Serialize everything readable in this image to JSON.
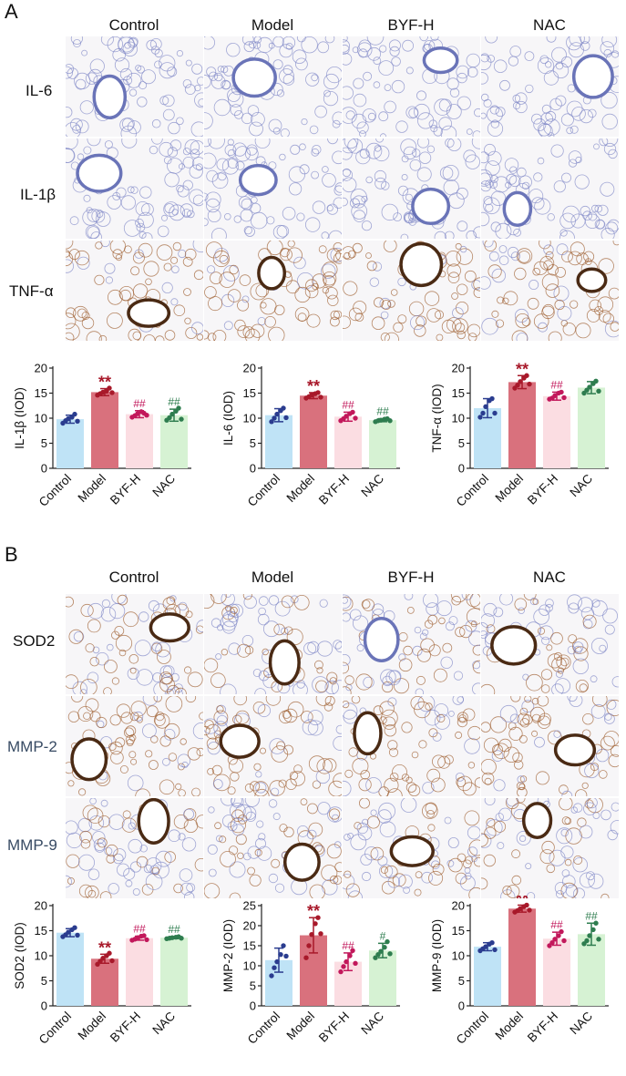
{
  "panel_a": {
    "letter": "A",
    "columns": [
      "Control",
      "Model",
      "BYF-H",
      "NAC"
    ],
    "rows": [
      "IL-6",
      "IL-1β",
      "TNF-α"
    ]
  },
  "panel_b": {
    "letter": "B",
    "columns": [
      "Control",
      "Model",
      "BYF-H",
      "NAC"
    ],
    "rows": [
      "SOD2",
      "MMP-2",
      "MMP-9"
    ]
  },
  "colors": {
    "Control": {
      "fill": "#bfe3f6",
      "dot": "#2a3c8f"
    },
    "Model": {
      "fill": "#d9717d",
      "dot": "#a8192a"
    },
    "BYF-H": {
      "fill": "#fbdde2",
      "dot": "#c2185b"
    },
    "NAC": {
      "fill": "#d6f2d3",
      "dot": "#2e7d4f"
    },
    "tissue_blue": "#7d86c6",
    "tissue_brown": "#9b5a2a"
  },
  "stain_types": {
    "IL-6": "blue",
    "IL-1β": "blue",
    "TNF-α": "brown",
    "SOD2": "mixed",
    "MMP-2": "brown",
    "MMP-9": "mixed"
  },
  "chart_data": [
    {
      "type": "bar",
      "ylabel": "IL-1β (IOD)",
      "ylim": [
        0,
        20
      ],
      "yticks": [
        0,
        5,
        10,
        15,
        20
      ],
      "categories": [
        "Control",
        "Model",
        "BYF-H",
        "NAC"
      ],
      "values": [
        9.8,
        15.2,
        10.8,
        10.6
      ],
      "errors": [
        0.8,
        0.7,
        0.7,
        1.2
      ],
      "points": [
        [
          9.0,
          9.5,
          9.9,
          10.2,
          10.8,
          9.4
        ],
        [
          14.6,
          14.9,
          15.2,
          15.4,
          16.0,
          15.1
        ],
        [
          10.2,
          10.5,
          10.9,
          11.3,
          11.0,
          10.6
        ],
        [
          9.6,
          10.1,
          10.8,
          11.4,
          12.0,
          9.8
        ]
      ],
      "annotations": [
        "",
        "**",
        "##",
        "##"
      ]
    },
    {
      "type": "bar",
      "ylabel": "IL-6 (IOD)",
      "ylim": [
        0,
        20
      ],
      "yticks": [
        0,
        5,
        10,
        15,
        20
      ],
      "categories": [
        "Control",
        "Model",
        "BYF-H",
        "NAC"
      ],
      "values": [
        10.6,
        14.5,
        10.3,
        9.6
      ],
      "errors": [
        1.3,
        0.6,
        0.9,
        0.3
      ],
      "points": [
        [
          9.3,
          10.0,
          10.8,
          11.5,
          12.0,
          10.1
        ],
        [
          14.0,
          14.3,
          14.6,
          14.9,
          15.1,
          14.2
        ],
        [
          9.5,
          9.9,
          10.4,
          10.9,
          11.2,
          10.0
        ],
        [
          9.3,
          9.5,
          9.6,
          9.8,
          9.9,
          9.5
        ]
      ],
      "annotations": [
        "",
        "**",
        "##",
        "##"
      ]
    },
    {
      "type": "bar",
      "ylabel": "TNF-α (IOD)",
      "ylim": [
        0,
        20
      ],
      "yticks": [
        0,
        5,
        10,
        15,
        20
      ],
      "categories": [
        "Control",
        "Model",
        "BYF-H",
        "NAC"
      ],
      "values": [
        12.0,
        17.2,
        14.4,
        16.1
      ],
      "errors": [
        1.9,
        1.3,
        0.8,
        1.2
      ],
      "points": [
        [
          10.2,
          11.0,
          12.3,
          13.5,
          13.9,
          11.0
        ],
        [
          16.0,
          16.6,
          17.3,
          18.0,
          18.5,
          16.8
        ],
        [
          13.8,
          14.0,
          14.5,
          15.0,
          15.2,
          14.1
        ],
        [
          15.0,
          15.6,
          16.2,
          16.9,
          17.4,
          15.4
        ]
      ],
      "annotations": [
        "",
        "**",
        "##",
        ""
      ]
    },
    {
      "type": "bar",
      "ylabel": "SOD2 (IOD)",
      "ylim": [
        0,
        20
      ],
      "yticks": [
        0,
        5,
        10,
        15,
        20
      ],
      "categories": [
        "Control",
        "Model",
        "BYF-H",
        "NAC"
      ],
      "values": [
        14.6,
        9.4,
        13.5,
        13.6
      ],
      "errors": [
        0.8,
        0.9,
        0.4,
        0.2
      ],
      "points": [
        [
          13.8,
          14.2,
          14.7,
          15.2,
          15.6,
          14.1
        ],
        [
          8.3,
          8.9,
          9.5,
          10.0,
          10.5,
          9.0
        ],
        [
          13.1,
          13.3,
          13.6,
          13.9,
          14.0,
          13.2
        ],
        [
          13.4,
          13.5,
          13.6,
          13.7,
          13.8,
          13.5
        ]
      ],
      "annotations": [
        "",
        "**",
        "##",
        "##"
      ]
    },
    {
      "type": "bar",
      "ylabel": "MMP-2 (IOD)",
      "ylim": [
        0,
        25
      ],
      "yticks": [
        0,
        5,
        10,
        15,
        20,
        25
      ],
      "categories": [
        "Control",
        "Model",
        "BYF-H",
        "NAC"
      ],
      "values": [
        11.4,
        17.6,
        11.0,
        13.8
      ],
      "errors": [
        3.0,
        4.4,
        2.2,
        1.8
      ],
      "points": [
        [
          7.5,
          9.5,
          11.0,
          12.8,
          15.0,
          12.4
        ],
        [
          12.0,
          15.0,
          17.8,
          20.5,
          22.0,
          18.0
        ],
        [
          8.5,
          9.8,
          11.0,
          12.5,
          13.8,
          10.6
        ],
        [
          12.0,
          12.8,
          13.6,
          14.6,
          16.0,
          13.0
        ]
      ],
      "annotations": [
        "",
        "**",
        "##",
        "#"
      ]
    },
    {
      "type": "bar",
      "ylabel": "MMP-9 (IOD)",
      "ylim": [
        0,
        20
      ],
      "yticks": [
        0,
        5,
        10,
        15,
        20
      ],
      "categories": [
        "Control",
        "Model",
        "BYF-H",
        "NAC"
      ],
      "values": [
        11.8,
        19.4,
        13.4,
        14.3
      ],
      "errors": [
        0.8,
        0.7,
        1.3,
        2.2
      ],
      "points": [
        [
          11.0,
          11.4,
          11.8,
          12.3,
          12.6,
          11.2
        ],
        [
          18.7,
          19.0,
          19.4,
          19.8,
          20.1,
          19.1
        ],
        [
          12.0,
          12.6,
          13.3,
          14.0,
          14.8,
          13.0
        ],
        [
          12.4,
          13.0,
          14.0,
          15.2,
          16.5,
          13.3
        ]
      ],
      "annotations": [
        "",
        "**",
        "##",
        "##"
      ]
    }
  ]
}
